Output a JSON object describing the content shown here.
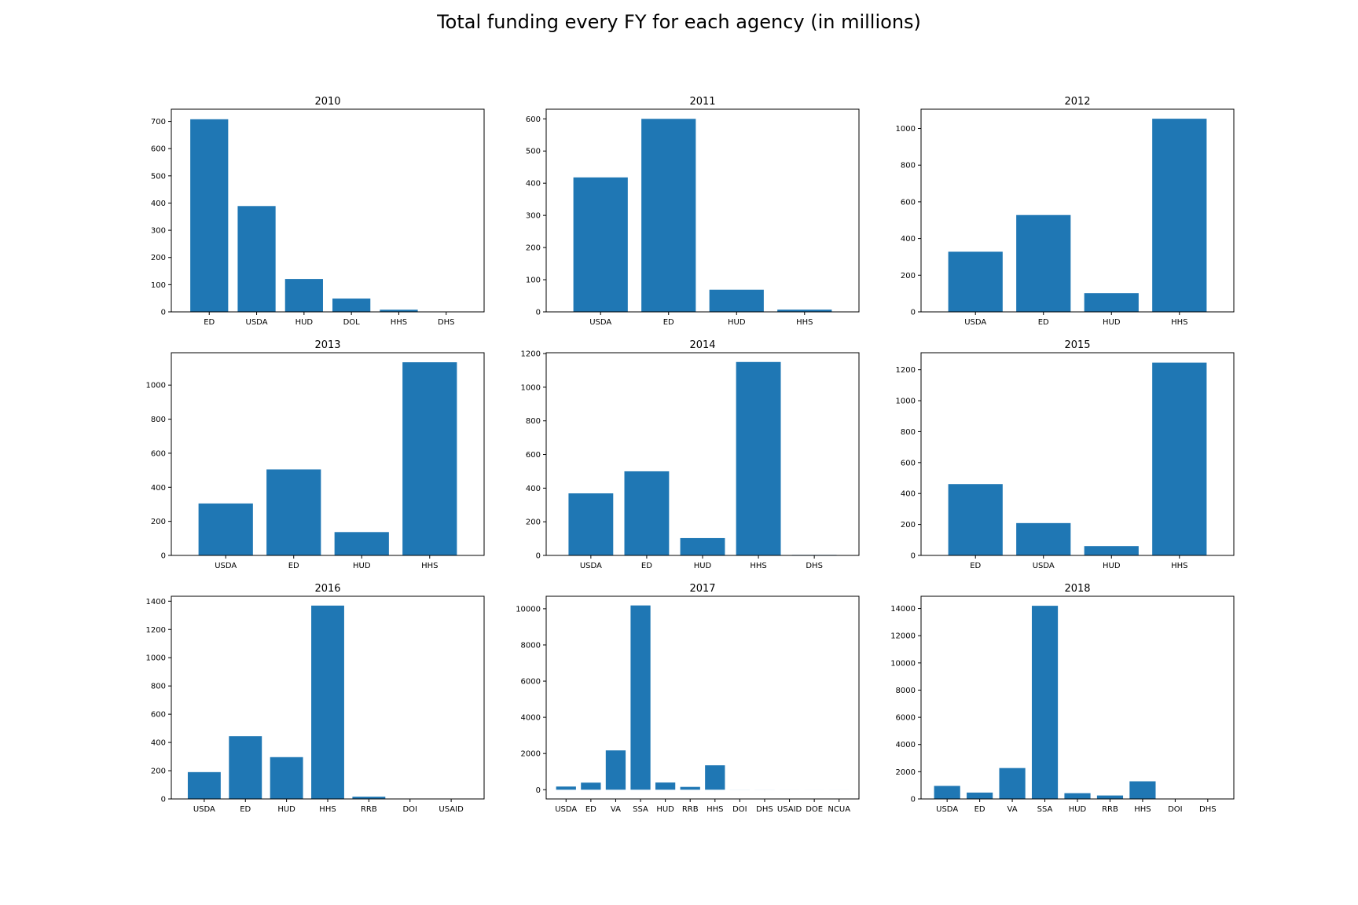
{
  "title": "Total funding every FY for each agency (in millions)",
  "colors": {
    "bar": "#1f77b4",
    "axis": "#000000"
  },
  "chart_data": [
    {
      "type": "bar",
      "title": "2010",
      "categories": [
        "ED",
        "USDA",
        "HUD",
        "DOL",
        "HHS",
        "DHS"
      ],
      "values": [
        708,
        389,
        121,
        49,
        8,
        0
      ],
      "ylim": [
        0,
        745
      ],
      "yticks": [
        0,
        100,
        200,
        300,
        400,
        500,
        600,
        700
      ]
    },
    {
      "type": "bar",
      "title": "2011",
      "categories": [
        "USDA",
        "ED",
        "HUD",
        "HHS"
      ],
      "values": [
        418,
        600,
        69,
        7
      ],
      "ylim": [
        0,
        630
      ],
      "yticks": [
        0,
        100,
        200,
        300,
        400,
        500,
        600
      ]
    },
    {
      "type": "bar",
      "title": "2012",
      "categories": [
        "USDA",
        "ED",
        "HUD",
        "HHS"
      ],
      "values": [
        328,
        528,
        102,
        1053
      ],
      "ylim": [
        0,
        1105
      ],
      "yticks": [
        0,
        200,
        400,
        600,
        800,
        1000
      ]
    },
    {
      "type": "bar",
      "title": "2013",
      "categories": [
        "USDA",
        "ED",
        "HUD",
        "HHS"
      ],
      "values": [
        305,
        505,
        137,
        1134
      ],
      "ylim": [
        0,
        1190
      ],
      "yticks": [
        0,
        200,
        400,
        600,
        800,
        1000
      ]
    },
    {
      "type": "bar",
      "title": "2014",
      "categories": [
        "USDA",
        "ED",
        "HUD",
        "HHS",
        "DHS"
      ],
      "values": [
        369,
        500,
        103,
        1150,
        3
      ],
      "ylim": [
        0,
        1205
      ],
      "yticks": [
        0,
        200,
        400,
        600,
        800,
        1000,
        1200
      ]
    },
    {
      "type": "bar",
      "title": "2015",
      "categories": [
        "ED",
        "USDA",
        "HUD",
        "HHS"
      ],
      "values": [
        461,
        209,
        60,
        1246
      ],
      "ylim": [
        0,
        1310
      ],
      "yticks": [
        0,
        200,
        400,
        600,
        800,
        1000,
        1200
      ]
    },
    {
      "type": "bar",
      "title": "2016",
      "categories": [
        "USDA",
        "ED",
        "HUD",
        "HHS",
        "RRB",
        "DOI",
        "USAID"
      ],
      "values": [
        190,
        444,
        296,
        1369,
        16,
        2,
        1
      ],
      "ylim": [
        0,
        1435
      ],
      "yticks": [
        0,
        200,
        400,
        600,
        800,
        1000,
        1200,
        1400
      ]
    },
    {
      "type": "bar",
      "title": "2017",
      "categories": [
        "USDA",
        "ED",
        "VA",
        "SSA",
        "HUD",
        "RRB",
        "HHS",
        "DOI",
        "DHS",
        "USAID",
        "DOE",
        "NCUA"
      ],
      "values": [
        175,
        391,
        2173,
        10183,
        398,
        155,
        1349,
        3,
        2,
        1,
        1,
        1
      ],
      "ylim": [
        -510,
        10690
      ],
      "yticks": [
        0,
        2000,
        4000,
        6000,
        8000,
        10000
      ]
    },
    {
      "type": "bar",
      "title": "2018",
      "categories": [
        "USDA",
        "ED",
        "VA",
        "SSA",
        "HUD",
        "RRB",
        "HHS",
        "DOI",
        "DHS"
      ],
      "values": [
        960,
        469,
        2272,
        14200,
        424,
        254,
        1297,
        3,
        2
      ],
      "ylim": [
        0,
        14900
      ],
      "yticks": [
        0,
        2000,
        4000,
        6000,
        8000,
        10000,
        12000,
        14000
      ]
    }
  ]
}
